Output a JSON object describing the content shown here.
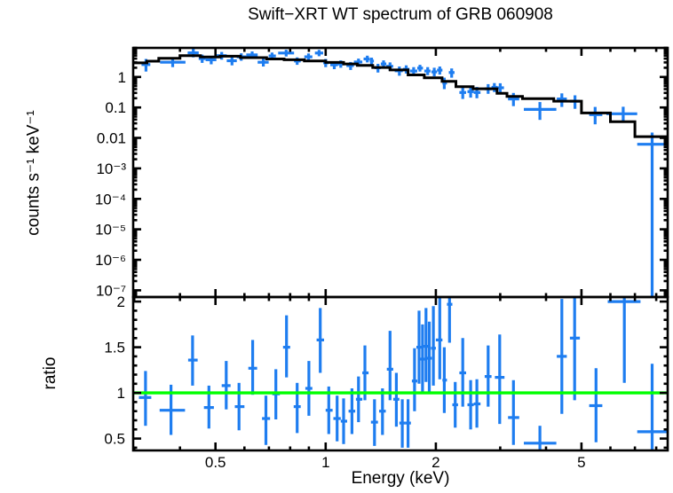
{
  "chart_data": {
    "type": "scatter",
    "subtype": "x-ray-spectrum-with-errorbars-and-stepped-model",
    "title": "Swift−XRT WT spectrum of GRB 060908",
    "xlabel": "Energy (keV)",
    "x_scale": "log",
    "xlim": [
      0.298,
      8.6
    ],
    "x_major_ticks": [
      0.5,
      1,
      2,
      5
    ],
    "x_major_tick_labels": [
      "0.5",
      "1",
      "2",
      "5"
    ],
    "grid": false,
    "legend": "none",
    "colors": {
      "data": "#1e7df0",
      "model": "#000000",
      "reference_line": "#00ff00",
      "frame": "#000000",
      "background": "#ffffff"
    },
    "points_format": "[energy_keV, energy_lo, energy_hi, value, value_lo, value_hi]",
    "panels": [
      {
        "name": "spectrum",
        "ylabel": "counts s⁻¹ keV⁻¹",
        "y_scale": "log",
        "ylim": [
          6e-08,
          9
        ],
        "y_major_ticks": [
          1,
          0.1,
          0.01,
          0.001,
          0.0001,
          1e-05,
          1e-06,
          1e-07
        ],
        "y_major_tick_labels": [
          "1",
          "0.1",
          "0.01",
          "10⁻³",
          "10⁻⁴",
          "10⁻⁵",
          "10⁻⁶",
          "10⁻⁷"
        ],
        "model_steps_format": "[energy_lo, energy_hi, model_value]",
        "model_steps": [
          [
            0.298,
            0.325,
            2.9
          ],
          [
            0.325,
            0.35,
            3.3
          ],
          [
            0.35,
            0.4,
            4.1
          ],
          [
            0.4,
            0.455,
            5.0
          ],
          [
            0.455,
            0.515,
            4.5
          ],
          [
            0.515,
            0.585,
            4.8
          ],
          [
            0.585,
            0.69,
            4.3
          ],
          [
            0.69,
            0.77,
            3.9
          ],
          [
            0.77,
            0.875,
            3.66
          ],
          [
            0.875,
            1.0,
            3.34
          ],
          [
            1.0,
            1.12,
            3.0
          ],
          [
            1.12,
            1.22,
            2.67
          ],
          [
            1.22,
            1.345,
            2.4
          ],
          [
            1.345,
            1.5,
            2.05
          ],
          [
            1.5,
            1.68,
            1.7
          ],
          [
            1.68,
            1.86,
            1.17
          ],
          [
            1.86,
            2.08,
            0.94
          ],
          [
            2.08,
            2.27,
            0.72
          ],
          [
            2.27,
            2.53,
            0.48
          ],
          [
            2.53,
            2.94,
            0.41
          ],
          [
            2.94,
            3.13,
            0.29
          ],
          [
            3.13,
            3.45,
            0.23
          ],
          [
            3.45,
            4.2,
            0.195
          ],
          [
            4.2,
            5.0,
            0.161
          ],
          [
            5.0,
            6.0,
            0.066
          ],
          [
            6.0,
            7.0,
            0.034
          ],
          [
            7.0,
            8.6,
            0.011
          ]
        ],
        "points": [
          [
            0.323,
            0.314,
            0.332,
            2.55,
            1.5,
            3.9
          ],
          [
            0.382,
            0.353,
            0.414,
            3.05,
            2.1,
            4.3
          ],
          [
            0.435,
            0.42,
            0.45,
            6.2,
            4.4,
            8.6
          ],
          [
            0.46,
            0.45,
            0.47,
            4.0,
            2.9,
            5.4
          ],
          [
            0.487,
            0.47,
            0.503,
            3.66,
            2.6,
            4.9
          ],
          [
            0.52,
            0.503,
            0.537,
            5.0,
            3.7,
            6.6
          ],
          [
            0.555,
            0.537,
            0.572,
            3.4,
            2.4,
            4.5
          ],
          [
            0.588,
            0.572,
            0.607,
            4.57,
            3.4,
            6.0
          ],
          [
            0.63,
            0.607,
            0.652,
            5.3,
            4.0,
            6.9
          ],
          [
            0.676,
            0.652,
            0.699,
            3.05,
            2.2,
            4.1
          ],
          [
            0.714,
            0.699,
            0.731,
            4.89,
            3.7,
            6.3
          ],
          [
            0.78,
            0.742,
            0.82,
            6.1,
            4.7,
            7.8
          ],
          [
            0.836,
            0.82,
            0.855,
            3.34,
            2.5,
            4.4
          ],
          [
            0.898,
            0.875,
            0.92,
            4.57,
            3.5,
            5.9
          ],
          [
            0.96,
            0.935,
            0.985,
            6.1,
            4.8,
            7.7
          ],
          [
            1.0,
            0.985,
            1.02,
            2.92,
            2.1,
            3.9
          ],
          [
            1.056,
            1.03,
            1.08,
            2.5,
            1.8,
            3.3
          ],
          [
            1.1,
            1.08,
            1.125,
            2.67,
            2.0,
            3.5
          ],
          [
            1.17,
            1.14,
            1.195,
            2.35,
            1.7,
            3.1
          ],
          [
            1.23,
            1.195,
            1.26,
            3.1,
            2.4,
            4.0
          ],
          [
            1.3,
            1.27,
            1.32,
            3.9,
            3.0,
            5.0
          ],
          [
            1.335,
            1.32,
            1.355,
            3.34,
            2.5,
            4.3
          ],
          [
            1.39,
            1.36,
            1.415,
            2.0,
            1.4,
            2.7
          ],
          [
            1.44,
            1.415,
            1.465,
            2.67,
            2.0,
            3.5
          ],
          [
            1.5,
            1.465,
            1.53,
            2.24,
            1.6,
            3.0
          ],
          [
            1.59,
            1.545,
            1.625,
            1.6,
            1.1,
            2.2
          ],
          [
            1.66,
            1.625,
            1.695,
            1.79,
            1.3,
            2.4
          ],
          [
            1.74,
            1.7,
            1.78,
            1.57,
            1.1,
            2.1
          ],
          [
            1.81,
            1.78,
            1.845,
            1.95,
            1.5,
            2.5
          ],
          [
            1.9,
            1.86,
            1.935,
            1.57,
            1.15,
            2.1
          ],
          [
            1.98,
            1.945,
            2.015,
            1.46,
            1.05,
            2.0
          ],
          [
            2.05,
            2.015,
            2.085,
            1.67,
            1.2,
            2.2
          ],
          [
            2.11,
            2.085,
            2.145,
            0.63,
            0.4,
            0.95
          ],
          [
            2.21,
            2.17,
            2.25,
            1.4,
            0.95,
            1.9
          ],
          [
            2.37,
            2.32,
            2.42,
            0.31,
            0.19,
            0.48
          ],
          [
            2.49,
            2.44,
            2.54,
            0.33,
            0.21,
            0.5
          ],
          [
            2.59,
            2.54,
            2.65,
            0.31,
            0.2,
            0.47
          ],
          [
            2.78,
            2.72,
            2.84,
            0.41,
            0.28,
            0.58
          ],
          [
            2.89,
            2.84,
            2.95,
            0.457,
            0.32,
            0.63
          ],
          [
            3.0,
            2.95,
            3.07,
            0.44,
            0.3,
            0.62
          ],
          [
            3.26,
            3.15,
            3.38,
            0.19,
            0.11,
            0.3
          ],
          [
            3.85,
            3.48,
            4.27,
            0.086,
            0.039,
            0.15
          ],
          [
            4.42,
            4.28,
            4.56,
            0.19,
            0.104,
            0.29
          ],
          [
            4.8,
            4.65,
            4.95,
            0.161,
            0.09,
            0.25
          ],
          [
            5.45,
            5.25,
            5.7,
            0.058,
            0.028,
            0.104
          ],
          [
            6.5,
            5.85,
            7.1,
            0.062,
            0.034,
            0.105
          ],
          [
            7.8,
            7.1,
            8.6,
            0.0062,
            6e-08,
            0.015
          ]
        ]
      },
      {
        "name": "ratio",
        "ylabel": "ratio",
        "y_scale": "linear",
        "ylim": [
          0.37,
          2.05
        ],
        "y_major_ticks": [
          0.5,
          1,
          1.5,
          2
        ],
        "y_major_tick_labels": [
          "0.5",
          "1",
          "1.5",
          "2"
        ],
        "y_minor_step": 0.1,
        "reference_line": {
          "y": 1,
          "color": "#00ff00"
        },
        "points": [
          [
            0.322,
            0.309,
            0.334,
            0.95,
            0.64,
            1.24
          ],
          [
            0.378,
            0.352,
            0.413,
            0.81,
            0.54,
            1.09
          ],
          [
            0.433,
            0.421,
            0.447,
            1.36,
            1.08,
            1.63
          ],
          [
            0.48,
            0.465,
            0.495,
            0.84,
            0.61,
            1.08
          ],
          [
            0.535,
            0.52,
            0.55,
            1.08,
            0.82,
            1.35
          ],
          [
            0.58,
            0.565,
            0.6,
            0.85,
            0.59,
            1.11
          ],
          [
            0.632,
            0.615,
            0.65,
            1.27,
            0.98,
            1.58
          ],
          [
            0.687,
            0.67,
            0.705,
            0.72,
            0.43,
            0.97
          ],
          [
            0.731,
            0.715,
            0.75,
            0.99,
            0.71,
            1.26
          ],
          [
            0.782,
            0.765,
            0.8,
            1.5,
            1.17,
            1.85
          ],
          [
            0.836,
            0.818,
            0.855,
            0.85,
            0.56,
            1.11
          ],
          [
            0.9,
            0.88,
            0.92,
            1.05,
            0.75,
            1.35
          ],
          [
            0.967,
            0.945,
            0.99,
            1.58,
            1.22,
            1.93
          ],
          [
            1.02,
            1.0,
            1.045,
            0.81,
            0.55,
            1.07
          ],
          [
            1.075,
            1.05,
            1.1,
            0.72,
            0.47,
            0.97
          ],
          [
            1.12,
            1.1,
            1.145,
            0.69,
            0.44,
            0.94
          ],
          [
            1.18,
            1.155,
            1.205,
            0.8,
            0.55,
            1.05
          ],
          [
            1.23,
            1.21,
            1.26,
            0.93,
            0.68,
            1.18
          ],
          [
            1.28,
            1.26,
            1.31,
            1.22,
            0.92,
            1.52
          ],
          [
            1.36,
            1.33,
            1.39,
            0.68,
            0.42,
            0.93
          ],
          [
            1.43,
            1.4,
            1.46,
            0.8,
            0.54,
            1.05
          ],
          [
            1.5,
            1.47,
            1.53,
            1.26,
            0.92,
            1.68
          ],
          [
            1.56,
            1.53,
            1.59,
            0.93,
            0.63,
            1.22
          ],
          [
            1.62,
            1.59,
            1.65,
            0.67,
            0.4,
            0.93
          ],
          [
            1.68,
            1.65,
            1.71,
            0.67,
            0.4,
            0.93
          ],
          [
            1.75,
            1.72,
            1.78,
            1.13,
            0.8,
            1.49
          ],
          [
            1.8,
            1.77,
            1.83,
            1.5,
            1.1,
            1.9
          ],
          [
            1.84,
            1.81,
            1.87,
            1.37,
            1.0,
            1.75
          ],
          [
            1.88,
            1.85,
            1.91,
            1.51,
            1.12,
            1.93
          ],
          [
            1.92,
            1.89,
            1.95,
            1.38,
            1.0,
            1.78
          ],
          [
            1.97,
            1.94,
            2.0,
            1.49,
            1.08,
            1.95
          ],
          [
            2.05,
            2.0,
            2.085,
            1.58,
            1.15,
            2.05
          ],
          [
            2.11,
            2.085,
            2.145,
            1.14,
            0.78,
            1.5
          ],
          [
            2.18,
            2.145,
            2.22,
            1.97,
            1.55,
            2.05
          ],
          [
            2.26,
            2.22,
            2.3,
            0.87,
            0.62,
            1.12
          ],
          [
            2.37,
            2.32,
            2.42,
            1.22,
            0.85,
            1.6
          ],
          [
            2.49,
            2.44,
            2.54,
            0.87,
            0.6,
            1.14
          ],
          [
            2.59,
            2.54,
            2.65,
            0.88,
            0.62,
            1.15
          ],
          [
            2.78,
            2.72,
            2.84,
            1.18,
            0.85,
            1.52
          ],
          [
            2.99,
            2.9,
            3.08,
            1.17,
            0.66,
            1.64
          ],
          [
            3.26,
            3.15,
            3.38,
            0.73,
            0.43,
            1.14
          ],
          [
            3.85,
            3.48,
            4.27,
            0.45,
            0.37,
            0.64
          ],
          [
            4.42,
            4.28,
            4.56,
            1.4,
            0.77,
            2.03
          ],
          [
            4.79,
            4.65,
            4.95,
            1.6,
            0.92,
            2.05
          ],
          [
            5.48,
            5.25,
            5.7,
            0.86,
            0.46,
            1.27
          ],
          [
            6.55,
            5.9,
            7.25,
            2.0,
            1.11,
            2.05
          ],
          [
            7.8,
            7.1,
            8.6,
            0.575,
            0.37,
            1.32
          ]
        ]
      }
    ]
  }
}
